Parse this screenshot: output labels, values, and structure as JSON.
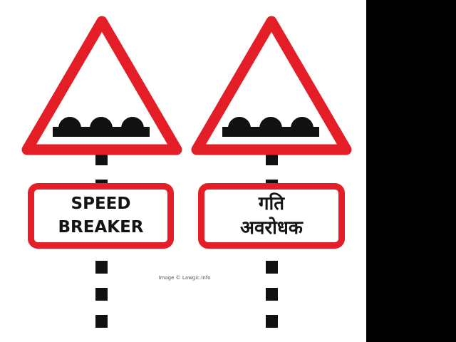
{
  "signs": [
    {
      "plate_text": "SPEED\nBREAKER",
      "symbol": "road-hump-icon",
      "colors": {
        "border": "#e41e26",
        "symbol": "#111111",
        "text": "#141414"
      }
    },
    {
      "plate_text": "गति\nअवरोधक",
      "symbol": "road-hump-icon",
      "colors": {
        "border": "#e41e26",
        "symbol": "#111111",
        "text": "#141414"
      }
    }
  ],
  "credit": "Image © Lawgic.Info"
}
